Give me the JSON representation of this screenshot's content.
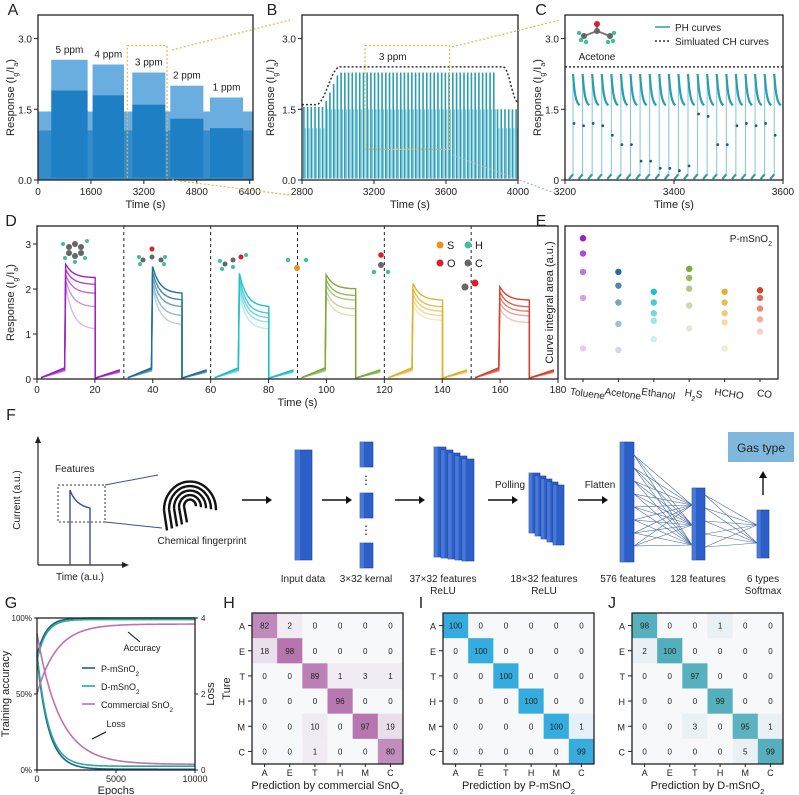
{
  "colors": {
    "blue": "#1f7fc4",
    "blueLight": "#6aaee0",
    "teal": "#2a9db0",
    "purple": "#b04ccc",
    "box": "#e6b84a",
    "nnBlue": "#2d5fc9",
    "gasBox": "#7fb8dc",
    "gases": [
      "#9b1fc9",
      "#1f6e9b",
      "#1fc0c9",
      "#7fa83a",
      "#e0b030",
      "#d8402a"
    ],
    "cmH": "#b06aa8",
    "cmI": "#2aa8dc",
    "cmJ": "#4aaab8"
  },
  "chart_data": [
    {
      "panel": "A",
      "type": "line",
      "xlabel": "Time (s)",
      "ylabel": "Response (Ig/Ia)",
      "xlim": [
        0,
        6500
      ],
      "ylim": [
        0,
        3.5
      ],
      "xticks": [
        "0",
        "1600",
        "3200",
        "4800",
        "6400"
      ],
      "yticks": [
        "0.0",
        "1.5",
        "3.0"
      ],
      "segments": [
        {
          "label": "5 ppm",
          "start": 400,
          "end": 1500,
          "peak": 2.55,
          "mid": 1.9
        },
        {
          "label": "4 ppm",
          "start": 1650,
          "end": 2600,
          "peak": 2.45,
          "mid": 1.8
        },
        {
          "label": "3 ppm",
          "start": 2850,
          "end": 3850,
          "peak": 2.28,
          "mid": 1.6
        },
        {
          "label": "2 ppm",
          "start": 4000,
          "end": 5000,
          "peak": 2.0,
          "mid": 1.3
        },
        {
          "label": "1 ppm",
          "start": 5200,
          "end": 6200,
          "peak": 1.75,
          "mid": 1.1
        }
      ]
    },
    {
      "panel": "B",
      "type": "line",
      "xlabel": "Time (s)",
      "ylabel": "Response (Ig/Ia)",
      "xlim": [
        2800,
        4000
      ],
      "ylim": [
        0,
        3.5
      ],
      "xticks": [
        "2800",
        "3200",
        "3600",
        "4000"
      ],
      "yticks": [
        "0.0",
        "1.5",
        "3.0"
      ],
      "annotation": "3 ppm",
      "plateau": 2.4,
      "baseline": 1.6
    },
    {
      "panel": "C",
      "type": "line",
      "xlabel": "Time (s)",
      "ylabel": "Response (Ig/Ia)",
      "xlim": [
        3200,
        3600
      ],
      "ylim": [
        0,
        3.5
      ],
      "xticks": [
        "3200",
        "3400",
        "3600"
      ],
      "yticks": [
        "0",
        "1.5",
        "3.0"
      ],
      "legend": [
        "PH curves",
        "Simluated CH curves"
      ],
      "molecule": "Acetone",
      "ch_level": 2.4,
      "scatter_values": [
        1.2,
        1.15,
        1.2,
        1.15,
        0.95,
        0.75,
        0.75,
        0.4,
        0.4,
        0.25,
        0.25,
        0.2,
        0.3,
        1.4,
        1.35,
        0.75,
        0.75,
        1.15,
        1.2,
        1.15,
        1.2,
        0.95,
        0.95,
        0.75
      ]
    },
    {
      "panel": "D",
      "type": "line",
      "xlabel": "Time (s)",
      "ylabel": "Response (Ig/Ia)",
      "xlim": [
        0,
        180
      ],
      "ylim": [
        0,
        3.4
      ],
      "xticks": [
        "0",
        "20",
        "40",
        "60",
        "80",
        "100",
        "120",
        "140",
        "160",
        "180"
      ],
      "yticks": [
        "0",
        "1",
        "2",
        "3"
      ],
      "legend": [
        "S",
        "H",
        "O",
        "C"
      ],
      "gases": [
        {
          "name": "Toluene",
          "peak": 2.55,
          "levels": [
            2.25,
            2.1,
            1.9,
            1.6,
            1.1
          ]
        },
        {
          "name": "Acetone",
          "peak": 2.5,
          "levels": [
            1.9,
            1.75,
            1.6,
            1.4,
            1.2
          ]
        },
        {
          "name": "Ethanol",
          "peak": 2.35,
          "levels": [
            1.6,
            1.45,
            1.35,
            1.25,
            1.1
          ]
        },
        {
          "name": "H2S",
          "peak": 2.32,
          "levels": [
            2.0,
            1.85,
            1.75,
            1.55,
            1.4
          ]
        },
        {
          "name": "HCHO",
          "peak": 2.12,
          "levels": [
            1.75,
            1.6,
            1.5,
            1.4,
            1.3
          ]
        },
        {
          "name": "CO",
          "peak": 2.05,
          "levels": [
            1.75,
            1.6,
            1.5,
            1.4,
            1.25
          ]
        }
      ]
    },
    {
      "panel": "E",
      "type": "scatter",
      "ylabel": "Curve integral area (a.u.)",
      "annotation": "P-mSnO2",
      "categories": [
        "Toluene",
        "Acetone",
        "Ethanol",
        "H2S",
        "HCHO",
        "CO"
      ],
      "series": [
        {
          "name": "Toluene",
          "values": [
            0.92,
            0.82,
            0.7,
            0.53,
            0.2
          ]
        },
        {
          "name": "Acetone",
          "values": [
            0.7,
            0.61,
            0.5,
            0.36,
            0.19
          ]
        },
        {
          "name": "Ethanol",
          "values": [
            0.57,
            0.5,
            0.43,
            0.38,
            0.26
          ]
        },
        {
          "name": "H2S",
          "values": [
            0.72,
            0.66,
            0.59,
            0.48,
            0.33
          ]
        },
        {
          "name": "HCHO",
          "values": [
            0.57,
            0.5,
            0.43,
            0.37,
            0.2
          ]
        },
        {
          "name": "CO",
          "values": [
            0.58,
            0.53,
            0.46,
            0.39,
            0.31
          ]
        }
      ]
    },
    {
      "panel": "G",
      "type": "line",
      "xlabel": "Epochs",
      "ylabel": "Training accuracy",
      "y2label": "Loss",
      "xlim": [
        0,
        10000
      ],
      "ylim": [
        0,
        100
      ],
      "y2lim": [
        0,
        4
      ],
      "xticks": [
        "0",
        "5000",
        "10000"
      ],
      "yticks": [
        "0%",
        "50%",
        "100%"
      ],
      "y2ticks": [
        "0",
        "2",
        "4"
      ],
      "annotations": [
        "Accuracy",
        "Loss"
      ],
      "series": [
        {
          "name": "P-mSnO2",
          "final_accuracy": 100,
          "final_loss": 0.02
        },
        {
          "name": "D-mSnO2",
          "final_accuracy": 99,
          "final_loss": 0.1
        },
        {
          "name": "Commercial SnO2",
          "final_accuracy": 96,
          "final_loss": 0.15
        }
      ]
    },
    {
      "panel": "H",
      "type": "heatmap",
      "xlabel": "Prediction by commercial SnO2",
      "ylabel": "Ture",
      "labels": [
        "A",
        "E",
        "T",
        "H",
        "M",
        "C"
      ],
      "matrix": [
        [
          82,
          2,
          0,
          0,
          0,
          0
        ],
        [
          18,
          98,
          0,
          0,
          0,
          0
        ],
        [
          0,
          0,
          89,
          1,
          3,
          1
        ],
        [
          0,
          0,
          0,
          96,
          0,
          0
        ],
        [
          0,
          0,
          10,
          0,
          97,
          19
        ],
        [
          0,
          0,
          1,
          0,
          0,
          80
        ]
      ]
    },
    {
      "panel": "I",
      "type": "heatmap",
      "xlabel": "Prediction by P-mSnO2",
      "ylabel": "",
      "labels": [
        "A",
        "E",
        "T",
        "H",
        "M",
        "C"
      ],
      "matrix": [
        [
          100,
          0,
          0,
          0,
          0,
          0
        ],
        [
          0,
          100,
          0,
          0,
          0,
          0
        ],
        [
          0,
          0,
          100,
          0,
          0,
          0
        ],
        [
          0,
          0,
          0,
          100,
          0,
          0
        ],
        [
          0,
          0,
          0,
          0,
          100,
          1
        ],
        [
          0,
          0,
          0,
          0,
          0,
          99
        ]
      ]
    },
    {
      "panel": "J",
      "type": "heatmap",
      "xlabel": "Prediction by D-mSnO2",
      "ylabel": "",
      "labels": [
        "A",
        "E",
        "T",
        "H",
        "M",
        "C"
      ],
      "matrix": [
        [
          98,
          0,
          0,
          1,
          0,
          0
        ],
        [
          2,
          100,
          0,
          0,
          0,
          0
        ],
        [
          0,
          0,
          97,
          0,
          0,
          0
        ],
        [
          0,
          0,
          0,
          99,
          0,
          0
        ],
        [
          0,
          0,
          3,
          0,
          95,
          1
        ],
        [
          0,
          0,
          0,
          0,
          5,
          99
        ]
      ]
    }
  ],
  "panelF": {
    "label": "F",
    "ylabel": "Current (a.u.)",
    "xlabel": "Time (a.u.)",
    "features": "Features",
    "fingerprint": "Chemical fingerprint",
    "stages": [
      "Input data",
      "3×32 kernal",
      "37×32 features",
      "18×32 features",
      "576 features",
      "128 features",
      "6 types"
    ],
    "stages2": [
      "",
      "",
      "ReLU",
      "ReLU",
      "",
      "",
      "Softmax"
    ],
    "pool": "Polling",
    "flatten": "Flatten",
    "output": "Gas type"
  },
  "panelLabels": [
    "A",
    "B",
    "C",
    "D",
    "E",
    "F",
    "G",
    "H",
    "I",
    "J"
  ]
}
